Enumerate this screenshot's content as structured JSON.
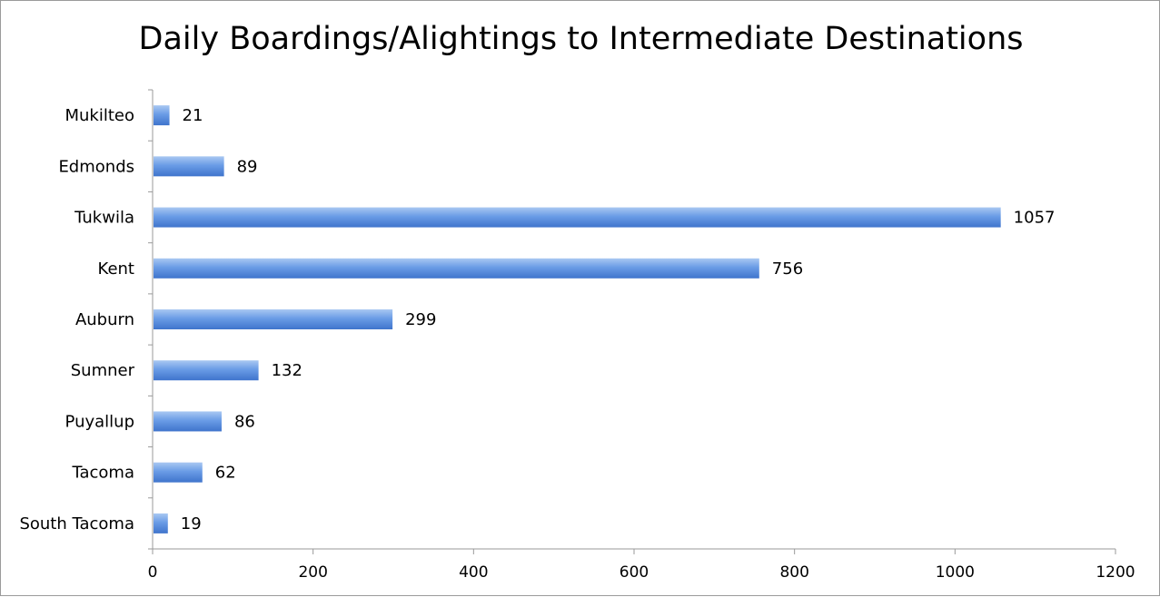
{
  "chart_data": {
    "type": "bar",
    "orientation": "horizontal",
    "title": "Daily Boardings/Alightings to Intermediate Destinations",
    "categories": [
      "Mukilteo",
      "Edmonds",
      "Tukwila",
      "Kent",
      "Auburn",
      "Sumner",
      "Puyallup",
      "Tacoma",
      "South Tacoma"
    ],
    "values": [
      21,
      89,
      1057,
      756,
      299,
      132,
      86,
      62,
      19
    ],
    "xlim": [
      0,
      1200
    ],
    "xticks": [
      0,
      200,
      400,
      600,
      800,
      1000,
      1200
    ],
    "xlabel": "",
    "ylabel": "",
    "grid": false,
    "legend": "none",
    "data_labels": true,
    "colors": {
      "bar_top": "#a9c8f2",
      "bar_mid": "#6a9ce6",
      "bar_bottom": "#3f74cc",
      "axis": "#9a9a9a"
    }
  }
}
